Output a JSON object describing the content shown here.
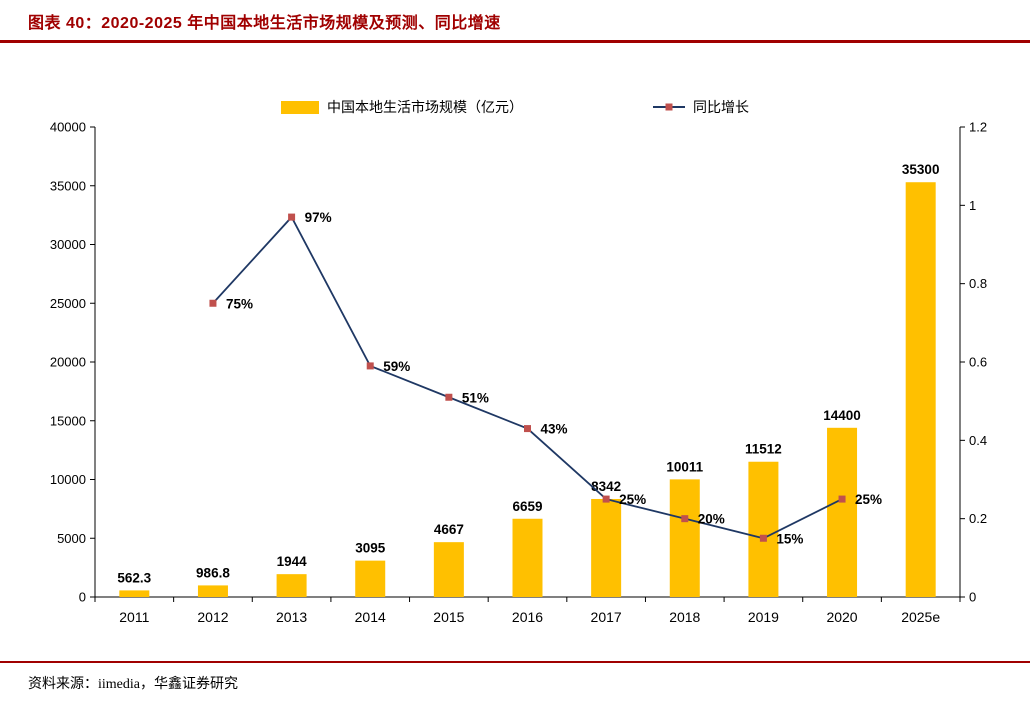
{
  "header": {
    "title": "图表 40：2020-2025 年中国本地生活市场规模及预测、同比增速"
  },
  "footer": {
    "source": "资料来源：iimedia，华鑫证券研究"
  },
  "colors": {
    "bar": "#FFC000",
    "line": "#1F3864",
    "marker": "#C0504D",
    "title": "#A00000",
    "rule": "#A00000",
    "axis": "#000000"
  },
  "chart_data": {
    "type": "bar+line",
    "title": "图表 40：2020-2025 年中国本地生活市场规模及预测、同比增速",
    "categories": [
      "2011",
      "2012",
      "2013",
      "2014",
      "2015",
      "2016",
      "2017",
      "2018",
      "2019",
      "2020",
      "2025e"
    ],
    "series": [
      {
        "name": "中国本地生活市场规模（亿元）",
        "type": "bar",
        "axis": "left",
        "values": [
          562.3,
          986.8,
          1944,
          3095,
          4667,
          6659,
          8342,
          10011,
          11512,
          14400,
          35300
        ],
        "labels": [
          "562.3",
          "986.8",
          "1944",
          "3095",
          "4667",
          "6659",
          "8342",
          "10011",
          "11512",
          "14400",
          "35300"
        ]
      },
      {
        "name": "同比增长",
        "type": "line",
        "axis": "right",
        "values": [
          null,
          0.75,
          0.97,
          0.59,
          0.51,
          0.43,
          0.25,
          0.2,
          0.15,
          0.25,
          null
        ],
        "labels": [
          null,
          "75%",
          "97%",
          "59%",
          "51%",
          "43%",
          "25%",
          "20%",
          "15%",
          "25%",
          null
        ]
      }
    ],
    "left_axis": {
      "min": 0,
      "max": 40000,
      "ticks": [
        0,
        5000,
        10000,
        15000,
        20000,
        25000,
        30000,
        35000,
        40000
      ],
      "tick_labels": [
        "0",
        "5000",
        "10000",
        "15000",
        "20000",
        "25000",
        "30000",
        "35000",
        "40000"
      ]
    },
    "right_axis": {
      "min": 0,
      "max": 1.2,
      "ticks": [
        0,
        0.2,
        0.4,
        0.6,
        0.8,
        1,
        1.2
      ],
      "tick_labels": [
        "0",
        "0.2",
        "0.4",
        "0.6",
        "0.8",
        "1",
        "1.2"
      ]
    },
    "legend_position": "top",
    "grid": false
  }
}
